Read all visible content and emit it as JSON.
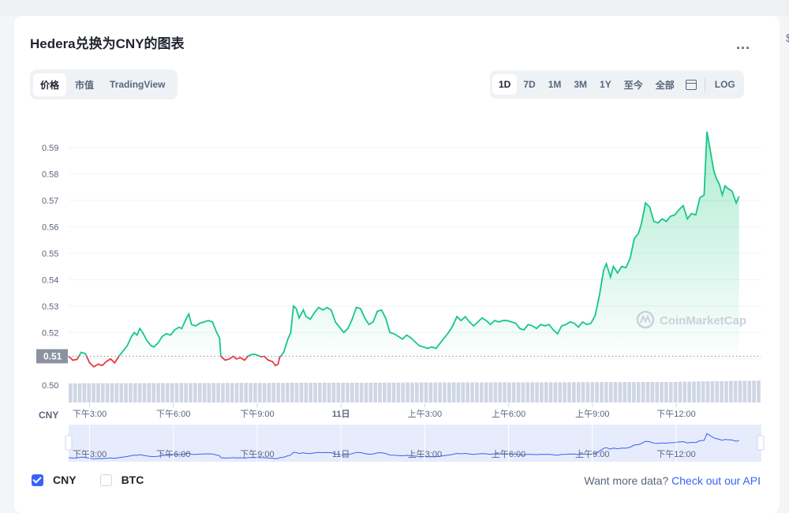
{
  "page": {
    "title": "Hedera兑换为CNY的图表",
    "more_label": "...",
    "edge_char": "$"
  },
  "tabs": [
    {
      "label": "价格",
      "active": true
    },
    {
      "label": "市值",
      "active": false
    },
    {
      "label": "TradingView",
      "active": false
    }
  ],
  "ranges": [
    {
      "label": "1D",
      "active": true
    },
    {
      "label": "7D",
      "active": false
    },
    {
      "label": "1M",
      "active": false
    },
    {
      "label": "3M",
      "active": false
    },
    {
      "label": "1Y",
      "active": false
    },
    {
      "label": "至今",
      "active": false
    },
    {
      "label": "全部",
      "active": false
    }
  ],
  "calendar_icon": "calendar-icon",
  "log_label": "LOG",
  "watermark": "CoinMarketCap",
  "legend": [
    {
      "label": "CNY",
      "checked": true
    },
    {
      "label": "BTC",
      "checked": false
    }
  ],
  "api": {
    "prompt": "Want more data?",
    "link": "Check out our API"
  },
  "colors": {
    "up": "#16c784",
    "down": "#ea3943",
    "accent": "#3861fb",
    "volume": "#cfd6e4",
    "navigator": "#e6ecfb"
  },
  "chart_data": {
    "type": "line",
    "currency_label": "CNY",
    "current_price_label": "0.51",
    "reference_price": 0.511,
    "y_ticks": [
      0.5,
      0.51,
      0.52,
      0.53,
      0.54,
      0.55,
      0.56,
      0.57,
      0.58,
      0.59
    ],
    "y_tick_labels": [
      "0.50",
      "",
      "0.52",
      "0.53",
      "0.54",
      "0.55",
      "0.56",
      "0.57",
      "0.58",
      "0.59"
    ],
    "ylim": [
      0.4935,
      0.604
    ],
    "xlim": [
      0,
      24.8
    ],
    "x_ticks": [
      {
        "h": 0.75,
        "label": "下午3:00"
      },
      {
        "h": 3.75,
        "label": "下午6:00"
      },
      {
        "h": 6.75,
        "label": "下午9:00"
      },
      {
        "h": 9.75,
        "label": "11日"
      },
      {
        "h": 12.75,
        "label": "上午3:00"
      },
      {
        "h": 15.75,
        "label": "上午6:00"
      },
      {
        "h": 18.75,
        "label": "上午9:00"
      },
      {
        "h": 21.75,
        "label": "下午12:00"
      }
    ],
    "navigator_ticks": [
      "下午3:00",
      "下午6:00",
      "下午9:00",
      "11日",
      "上午3:00",
      "上午6:00",
      "上午9:00",
      "下午12:00"
    ],
    "price": [
      [
        0.0,
        0.511
      ],
      [
        0.15,
        0.5095
      ],
      [
        0.3,
        0.5098
      ],
      [
        0.45,
        0.5125
      ],
      [
        0.6,
        0.512
      ],
      [
        0.75,
        0.5085
      ],
      [
        0.9,
        0.507
      ],
      [
        1.05,
        0.508
      ],
      [
        1.2,
        0.5075
      ],
      [
        1.35,
        0.509
      ],
      [
        1.5,
        0.51
      ],
      [
        1.65,
        0.5085
      ],
      [
        1.8,
        0.511
      ],
      [
        1.95,
        0.513
      ],
      [
        2.1,
        0.515
      ],
      [
        2.25,
        0.5185
      ],
      [
        2.35,
        0.52
      ],
      [
        2.45,
        0.519
      ],
      [
        2.55,
        0.5215
      ],
      [
        2.65,
        0.52
      ],
      [
        2.8,
        0.517
      ],
      [
        2.95,
        0.515
      ],
      [
        3.05,
        0.5145
      ],
      [
        3.2,
        0.516
      ],
      [
        3.35,
        0.5185
      ],
      [
        3.5,
        0.5195
      ],
      [
        3.65,
        0.519
      ],
      [
        3.8,
        0.521
      ],
      [
        3.95,
        0.522
      ],
      [
        4.05,
        0.5215
      ],
      [
        4.2,
        0.525
      ],
      [
        4.3,
        0.527
      ],
      [
        4.4,
        0.523
      ],
      [
        4.55,
        0.5225
      ],
      [
        4.7,
        0.5235
      ],
      [
        4.85,
        0.524
      ],
      [
        5.0,
        0.5245
      ],
      [
        5.15,
        0.524
      ],
      [
        5.3,
        0.52
      ],
      [
        5.4,
        0.518
      ],
      [
        5.45,
        0.511
      ],
      [
        5.6,
        0.5095
      ],
      [
        5.75,
        0.51
      ],
      [
        5.9,
        0.511
      ],
      [
        6.0,
        0.51
      ],
      [
        6.15,
        0.5105
      ],
      [
        6.3,
        0.5095
      ],
      [
        6.4,
        0.5108
      ],
      [
        6.5,
        0.5115
      ],
      [
        6.65,
        0.5118
      ],
      [
        6.8,
        0.5112
      ],
      [
        6.9,
        0.5108
      ],
      [
        7.0,
        0.511
      ],
      [
        7.15,
        0.5095
      ],
      [
        7.3,
        0.509
      ],
      [
        7.4,
        0.5075
      ],
      [
        7.5,
        0.508
      ],
      [
        7.55,
        0.5105
      ],
      [
        7.7,
        0.5125
      ],
      [
        7.85,
        0.5175
      ],
      [
        7.95,
        0.52
      ],
      [
        8.05,
        0.53
      ],
      [
        8.15,
        0.529
      ],
      [
        8.25,
        0.5255
      ],
      [
        8.4,
        0.5285
      ],
      [
        8.5,
        0.526
      ],
      [
        8.65,
        0.525
      ],
      [
        8.8,
        0.5275
      ],
      [
        8.95,
        0.5295
      ],
      [
        9.1,
        0.5285
      ],
      [
        9.25,
        0.5295
      ],
      [
        9.4,
        0.5285
      ],
      [
        9.55,
        0.524
      ],
      [
        9.7,
        0.522
      ],
      [
        9.85,
        0.52
      ],
      [
        10.0,
        0.5215
      ],
      [
        10.15,
        0.525
      ],
      [
        10.3,
        0.5295
      ],
      [
        10.45,
        0.529
      ],
      [
        10.6,
        0.5255
      ],
      [
        10.75,
        0.523
      ],
      [
        10.9,
        0.524
      ],
      [
        11.05,
        0.528
      ],
      [
        11.2,
        0.5285
      ],
      [
        11.35,
        0.5255
      ],
      [
        11.5,
        0.52
      ],
      [
        11.65,
        0.5195
      ],
      [
        11.8,
        0.5185
      ],
      [
        11.95,
        0.5175
      ],
      [
        12.1,
        0.519
      ],
      [
        12.25,
        0.518
      ],
      [
        12.4,
        0.5165
      ],
      [
        12.55,
        0.515
      ],
      [
        12.7,
        0.5145
      ],
      [
        12.85,
        0.514
      ],
      [
        13.0,
        0.5145
      ],
      [
        13.15,
        0.514
      ],
      [
        13.3,
        0.516
      ],
      [
        13.45,
        0.518
      ],
      [
        13.6,
        0.52
      ],
      [
        13.75,
        0.5225
      ],
      [
        13.9,
        0.526
      ],
      [
        14.05,
        0.5245
      ],
      [
        14.2,
        0.526
      ],
      [
        14.35,
        0.524
      ],
      [
        14.5,
        0.5225
      ],
      [
        14.65,
        0.524
      ],
      [
        14.8,
        0.5255
      ],
      [
        14.95,
        0.5245
      ],
      [
        15.1,
        0.523
      ],
      [
        15.25,
        0.5245
      ],
      [
        15.4,
        0.524
      ],
      [
        15.55,
        0.5245
      ],
      [
        15.7,
        0.5245
      ],
      [
        15.85,
        0.524
      ],
      [
        16.0,
        0.5235
      ],
      [
        16.15,
        0.5215
      ],
      [
        16.3,
        0.521
      ],
      [
        16.45,
        0.523
      ],
      [
        16.6,
        0.5225
      ],
      [
        16.75,
        0.5215
      ],
      [
        16.9,
        0.523
      ],
      [
        17.05,
        0.5225
      ],
      [
        17.2,
        0.523
      ],
      [
        17.35,
        0.521
      ],
      [
        17.5,
        0.5195
      ],
      [
        17.65,
        0.5225
      ],
      [
        17.8,
        0.523
      ],
      [
        17.95,
        0.524
      ],
      [
        18.1,
        0.5235
      ],
      [
        18.25,
        0.522
      ],
      [
        18.4,
        0.524
      ],
      [
        18.55,
        0.523
      ],
      [
        18.7,
        0.5235
      ],
      [
        18.85,
        0.5265
      ],
      [
        19.0,
        0.534
      ],
      [
        19.15,
        0.5435
      ],
      [
        19.25,
        0.546
      ],
      [
        19.4,
        0.541
      ],
      [
        19.5,
        0.545
      ],
      [
        19.65,
        0.5425
      ],
      [
        19.8,
        0.545
      ],
      [
        19.95,
        0.5445
      ],
      [
        20.1,
        0.548
      ],
      [
        20.25,
        0.5555
      ],
      [
        20.4,
        0.5575
      ],
      [
        20.5,
        0.561
      ],
      [
        20.65,
        0.569
      ],
      [
        20.8,
        0.5675
      ],
      [
        20.95,
        0.562
      ],
      [
        21.1,
        0.5615
      ],
      [
        21.25,
        0.563
      ],
      [
        21.4,
        0.562
      ],
      [
        21.55,
        0.564
      ],
      [
        21.7,
        0.5645
      ],
      [
        21.85,
        0.5665
      ],
      [
        22.0,
        0.568
      ],
      [
        22.15,
        0.563
      ],
      [
        22.3,
        0.565
      ],
      [
        22.45,
        0.5645
      ],
      [
        22.6,
        0.571
      ],
      [
        22.75,
        0.572
      ],
      [
        22.85,
        0.596
      ],
      [
        23.0,
        0.587
      ],
      [
        23.1,
        0.581
      ],
      [
        23.2,
        0.578
      ],
      [
        23.3,
        0.576
      ],
      [
        23.4,
        0.572
      ],
      [
        23.5,
        0.5755
      ],
      [
        23.6,
        0.5745
      ],
      [
        23.75,
        0.5735
      ],
      [
        23.9,
        0.569
      ],
      [
        24.0,
        0.5715
      ]
    ],
    "volume_bars": 150,
    "volume_start": 0.486,
    "volume_end": 0.555
  }
}
